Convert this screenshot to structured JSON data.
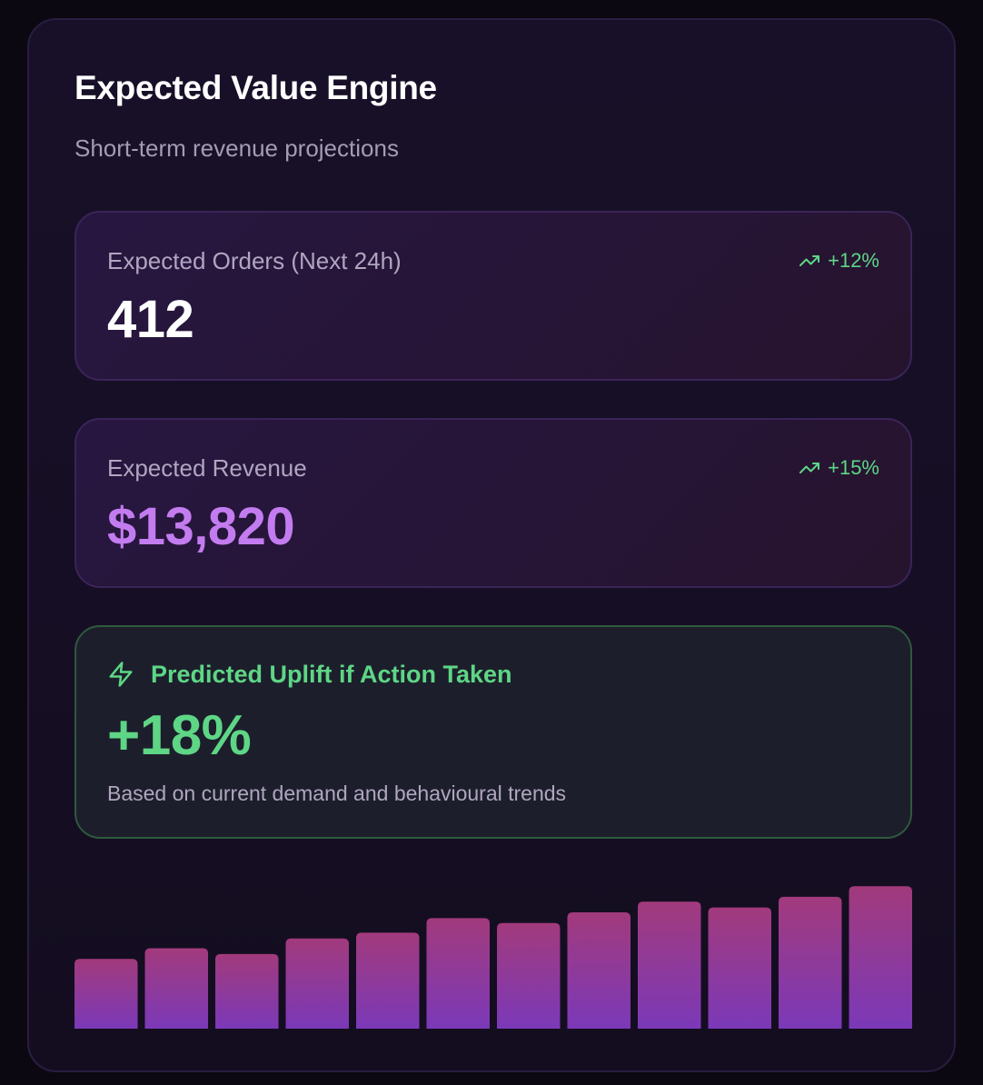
{
  "header": {
    "title": "Expected Value Engine",
    "subtitle": "Short-term revenue projections"
  },
  "cards": {
    "orders": {
      "label": "Expected Orders (Next 24h)",
      "value": "412",
      "trend": "+12%"
    },
    "revenue": {
      "label": "Expected Revenue",
      "value": "$13,820",
      "trend": "+15%"
    },
    "uplift": {
      "title": "Predicted Uplift if Action Taken",
      "value": "+18%",
      "note": "Based on current demand and behavioural trends"
    }
  },
  "colors": {
    "accent_green": "#5ed686",
    "accent_purple": "#c37cf0",
    "bar_top": "#a23a7c",
    "bar_bottom": "#7b39b8"
  },
  "icons": {
    "trend": "trending-up-icon",
    "uplift": "lightning-bolt-icon"
  },
  "chart_data": {
    "type": "bar",
    "values": [
      72,
      83,
      77,
      93,
      99,
      114,
      109,
      120,
      131,
      125,
      136,
      147
    ],
    "ylim": [
      0,
      150
    ]
  }
}
